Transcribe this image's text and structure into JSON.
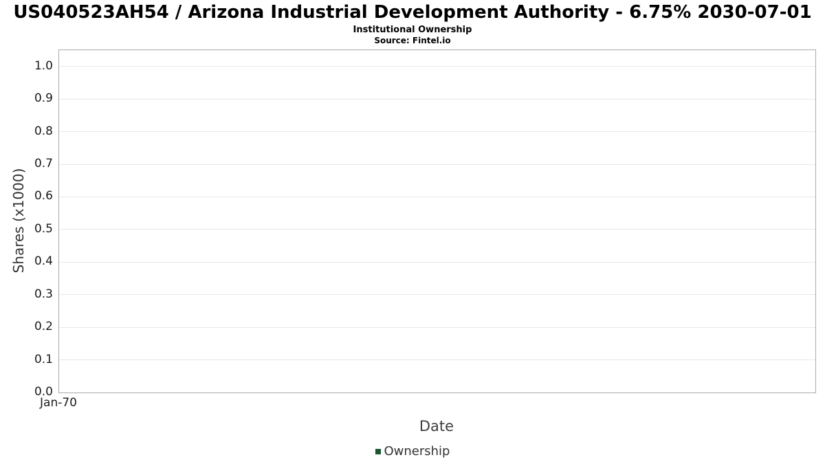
{
  "header": {
    "title": "US040523AH54 / Arizona Industrial Development Authority - 6.75% 2030-07-01",
    "subtitle": "Institutional Ownership",
    "source": "Source: Fintel.io"
  },
  "chart_data": {
    "type": "line",
    "title": "US040523AH54 / Arizona Industrial Development Authority - 6.75% 2030-07-01",
    "subtitle": "Institutional Ownership",
    "source_note": "Source: Fintel.io",
    "xlabel": "Date",
    "ylabel": "Shares (x1000)",
    "ylim": [
      0,
      1.05
    ],
    "y_tick_values": [
      0,
      0.1,
      0.2,
      0.3,
      0.4,
      0.5,
      0.6,
      0.7,
      0.8,
      0.9,
      1.0
    ],
    "y_tick_labels": [
      "0.0",
      "0.1",
      "0.2",
      "0.3",
      "0.4",
      "0.5",
      "0.6",
      "0.7",
      "0.8",
      "0.9",
      "1.0"
    ],
    "x_ticks": [
      {
        "label": "Jan-70",
        "pos": 0
      }
    ],
    "grid": true,
    "legend_position": "bottom",
    "series": [
      {
        "name": "Ownership",
        "color": "#1a5632",
        "x": [],
        "values": []
      }
    ]
  }
}
